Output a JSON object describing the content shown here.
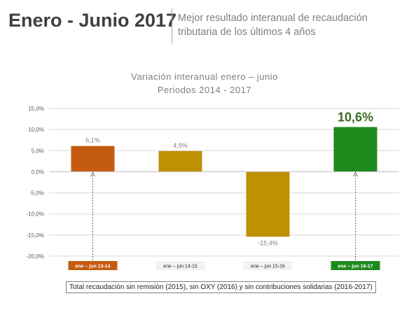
{
  "header": {
    "title": "Enero - Junio 2017",
    "subtitle": "Mejor resultado interanual de recaudación tributaria de los últimos 4 años"
  },
  "chart_data": {
    "type": "bar",
    "title": "Variación interanual enero – junio",
    "subtitle": "Periodos 2014 - 2017",
    "categories": [
      "ene – jun 13-14",
      "ene – jun 14-15",
      "ene – jun 15-16",
      "ene – jun 16-17"
    ],
    "values": [
      6.1,
      4.9,
      -15.4,
      10.6
    ],
    "value_labels": [
      "6,1%",
      "4,9%",
      "-15,4%",
      "10,6%"
    ],
    "bar_colors": [
      "#c55a11",
      "#bf9000",
      "#bf9000",
      "#1e8a1e"
    ],
    "category_label_bg": [
      "#c55a11",
      "#f2f2f2",
      "#f2f2f2",
      "#1e8a1e"
    ],
    "category_label_color": [
      "#ffffff",
      "#262626",
      "#262626",
      "#ffffff"
    ],
    "highlight_label_color": "#3a6b1e",
    "ylim": [
      -20,
      15
    ],
    "yticks": [
      15,
      10,
      5,
      0,
      -5,
      -10,
      -15,
      -20
    ],
    "ytick_labels": [
      "15,0%",
      "10,0%",
      "5,0%",
      "0,0%",
      "-5,0%",
      "-10,0%",
      "-15,0%",
      "-20,0%"
    ],
    "grid": true,
    "annotation_arrows": [
      0,
      3
    ]
  },
  "footnote": "Total recaudación sin remisión (2015), sin OXY (2016) y sin contribuciones solidarias (2016-2017)"
}
